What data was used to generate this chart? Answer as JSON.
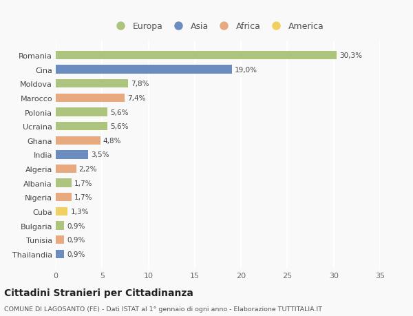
{
  "countries": [
    "Romania",
    "Cina",
    "Moldova",
    "Marocco",
    "Polonia",
    "Ucraina",
    "Ghana",
    "India",
    "Algeria",
    "Albania",
    "Nigeria",
    "Cuba",
    "Bulgaria",
    "Tunisia",
    "Thailandia"
  ],
  "values": [
    30.3,
    19.0,
    7.8,
    7.4,
    5.6,
    5.6,
    4.8,
    3.5,
    2.2,
    1.7,
    1.7,
    1.3,
    0.9,
    0.9,
    0.9
  ],
  "labels": [
    "30,3%",
    "19,0%",
    "7,8%",
    "7,4%",
    "5,6%",
    "5,6%",
    "4,8%",
    "3,5%",
    "2,2%",
    "1,7%",
    "1,7%",
    "1,3%",
    "0,9%",
    "0,9%",
    "0,9%"
  ],
  "continents": [
    "Europa",
    "Asia",
    "Europa",
    "Africa",
    "Europa",
    "Europa",
    "Africa",
    "Asia",
    "Africa",
    "Europa",
    "Africa",
    "America",
    "Europa",
    "Africa",
    "Asia"
  ],
  "colors": {
    "Europa": "#adc47e",
    "Asia": "#6b8cbf",
    "Africa": "#e8a97e",
    "America": "#f0d060"
  },
  "legend_order": [
    "Europa",
    "Asia",
    "Africa",
    "America"
  ],
  "title": "Cittadini Stranieri per Cittadinanza",
  "subtitle": "COMUNE DI LAGOSANTO (FE) - Dati ISTAT al 1° gennaio di ogni anno - Elaborazione TUTTITALIA.IT",
  "xlim": [
    0,
    35
  ],
  "xticks": [
    0,
    5,
    10,
    15,
    20,
    25,
    30,
    35
  ],
  "bg_color": "#f9f9f9",
  "grid_color": "#ffffff"
}
